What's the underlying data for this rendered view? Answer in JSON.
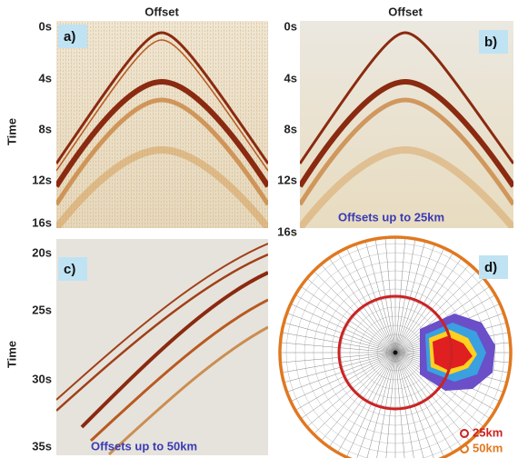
{
  "panels": [
    {
      "label": "a)",
      "header": "Offset",
      "y_axis_title": "Time",
      "y_ticks": [
        "0s",
        "4s",
        "8s",
        "12s",
        "16s"
      ]
    },
    {
      "label": "b)",
      "header": "Offset",
      "y_ticks": [
        "0s",
        "4s",
        "8s",
        "12s",
        "16s"
      ],
      "note": "Offsets up to 25km"
    },
    {
      "label": "c)",
      "y_axis_title": "Time",
      "y_ticks": [
        "20s",
        "25s",
        "30s",
        "35s"
      ],
      "note": "Offsets up to 50km"
    },
    {
      "label": "d)",
      "legend": [
        "25km",
        "50km"
      ]
    }
  ]
}
